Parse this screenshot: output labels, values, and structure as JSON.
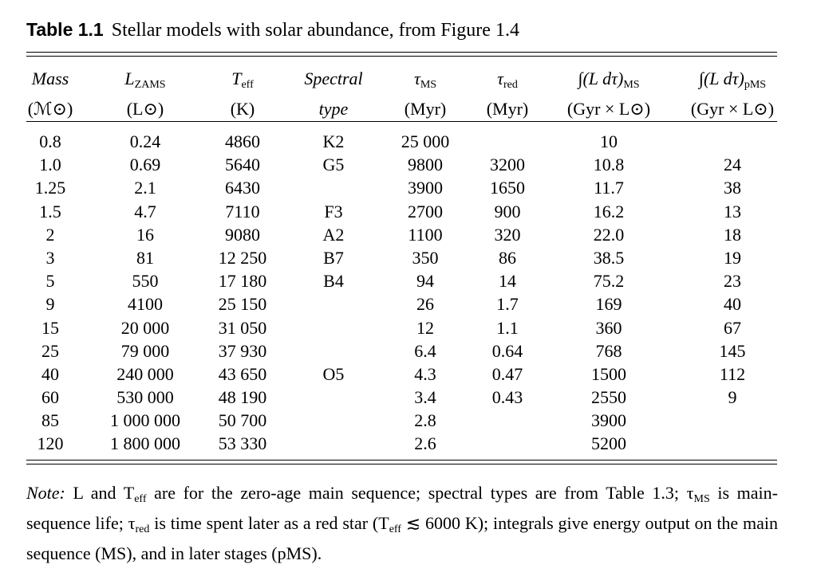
{
  "caption": {
    "label": "Table 1.1",
    "text": "Stellar models with solar abundance, from Figure 1.4"
  },
  "columns": [
    {
      "key": "mass",
      "line1": "Mass",
      "line1_sub": "",
      "line2": "(ℳ⊙)"
    },
    {
      "key": "lzams",
      "line1": "L",
      "line1_sub": "ZAMS",
      "line2": "(L⊙)"
    },
    {
      "key": "teff",
      "line1": "T",
      "line1_sub": "eff",
      "line2": "(K)"
    },
    {
      "key": "spectral",
      "line1": "Spectral",
      "line1_sub": "",
      "line2": "type"
    },
    {
      "key": "tau_ms",
      "line1": "τ",
      "line1_sub": "MS",
      "line2": "(Myr)"
    },
    {
      "key": "tau_red",
      "line1": "τ",
      "line1_sub": "red",
      "line2": "(Myr)"
    },
    {
      "key": "int_ms",
      "line1": "∫(L dτ)",
      "line1_sub": "MS",
      "line2": "(Gyr × L⊙)"
    },
    {
      "key": "int_pms",
      "line1": "∫(L dτ)",
      "line1_sub": "pMS",
      "line2": "(Gyr × L⊙)"
    }
  ],
  "rows": [
    [
      "0.8",
      "0.24",
      "4860",
      "K2",
      "25 000",
      "",
      "10",
      ""
    ],
    [
      "1.0",
      "0.69",
      "5640",
      "G5",
      "9800",
      "3200",
      "10.8",
      "24"
    ],
    [
      "1.25",
      "2.1",
      "6430",
      "",
      "3900",
      "1650",
      "11.7",
      "38"
    ],
    [
      "1.5",
      "4.7",
      "7110",
      "F3",
      "2700",
      "900",
      "16.2",
      "13"
    ],
    [
      "2",
      "16",
      "9080",
      "A2",
      "1100",
      "320",
      "22.0",
      "18"
    ],
    [
      "3",
      "81",
      "12 250",
      "B7",
      "350",
      "86",
      "38.5",
      "19"
    ],
    [
      "5",
      "550",
      "17 180",
      "B4",
      "94",
      "14",
      "75.2",
      "23"
    ],
    [
      "9",
      "4100",
      "25 150",
      "",
      "26",
      "1.7",
      "169",
      "40"
    ],
    [
      "15",
      "20 000",
      "31 050",
      "",
      "12",
      "1.1",
      "360",
      "67"
    ],
    [
      "25",
      "79 000",
      "37 930",
      "",
      "6.4",
      "0.64",
      "768",
      "145"
    ],
    [
      "40",
      "240 000",
      "43 650",
      "O5",
      "4.3",
      "0.47",
      "1500",
      "112"
    ],
    [
      "60",
      "530 000",
      "48 190",
      "",
      "3.4",
      "0.43",
      "2550",
      "9"
    ],
    [
      "85",
      "1 000 000",
      "50 700",
      "",
      "2.8",
      "",
      "3900",
      ""
    ],
    [
      "120",
      "1 800 000",
      "53 330",
      "",
      "2.6",
      "",
      "5200",
      ""
    ]
  ],
  "note": {
    "label": "Note:",
    "t1": " L and T",
    "t1_sub": "eff",
    "t2": " are for the zero-age main sequence; spectral types are from Table 1.3; τ",
    "t2_sub": "MS",
    "t3": " is main-sequence life; τ",
    "t3_sub": "red",
    "t4": " is time spent later as a red star (T",
    "t4_sub": "eff",
    "t5": " ≲ 6000 K); integrals give energy output on the main sequence (MS), and in later stages (pMS)."
  }
}
